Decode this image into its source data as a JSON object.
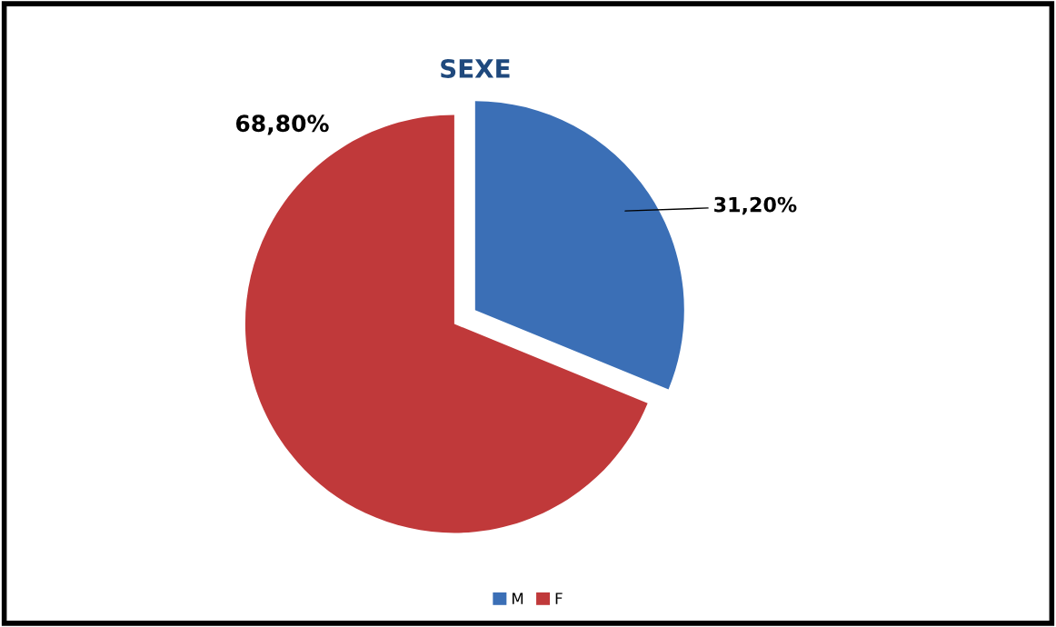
{
  "chart_data": {
    "type": "pie",
    "title": "SEXE",
    "categories": [
      "M",
      "F"
    ],
    "values": [
      31.2,
      68.8
    ],
    "colors": [
      "#3b6fb6",
      "#c0393a"
    ],
    "value_labels": [
      "31,20%",
      "68,80%"
    ],
    "legend": "bottom"
  }
}
